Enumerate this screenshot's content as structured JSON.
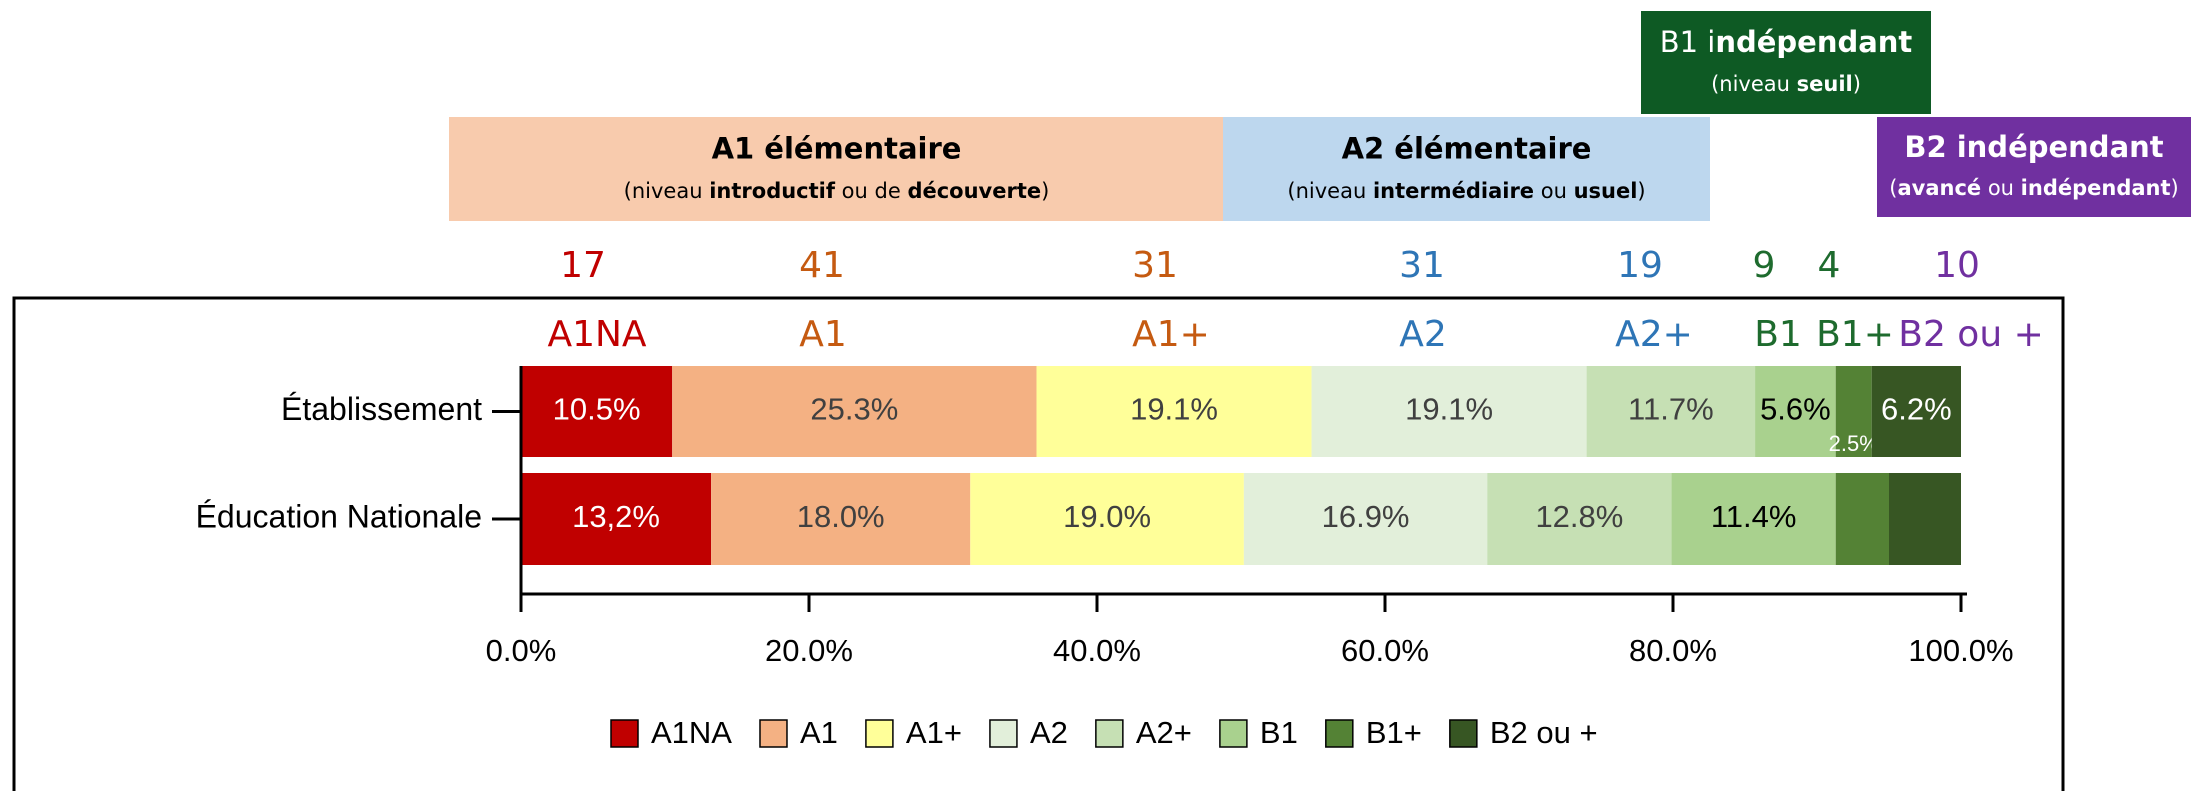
{
  "chart_data": {
    "type": "stacked_barh",
    "categories": [
      "Établissement",
      "Éducation Nationale"
    ],
    "series": [
      {
        "name": "A1NA",
        "color": "#c00000",
        "label_color": "#ffffff",
        "values": [
          10.5,
          13.2
        ],
        "value_labels": [
          "10.5%",
          "13,2%"
        ]
      },
      {
        "name": "A1",
        "color": "#f4b183",
        "label_color": "#404040",
        "values": [
          25.3,
          18.0
        ],
        "value_labels": [
          "25.3%",
          "18.0%"
        ]
      },
      {
        "name": "A1+",
        "color": "#ffff99",
        "label_color": "#404040",
        "values": [
          19.1,
          19.0
        ],
        "value_labels": [
          "19.1%",
          "19.0%"
        ]
      },
      {
        "name": "A2",
        "color": "#e2efda",
        "label_color": "#404040",
        "values": [
          19.1,
          16.9
        ],
        "value_labels": [
          "19.1%",
          "16.9%"
        ]
      },
      {
        "name": "A2+",
        "color": "#c6e0b4",
        "label_color": "#404040",
        "values": [
          11.7,
          12.8
        ],
        "value_labels": [
          "11.7%",
          "12.8%"
        ]
      },
      {
        "name": "B1",
        "color": "#a9d18e",
        "label_color": "#000000",
        "values": [
          5.6,
          11.4
        ],
        "value_labels": [
          "5.6%",
          "11.4%"
        ]
      },
      {
        "name": "B1+",
        "color": "#548235",
        "label_color": "#ffffff",
        "values": [
          2.5,
          3.7
        ],
        "value_labels": [
          "2.5%",
          null
        ]
      },
      {
        "name": "B2 ou +",
        "color": "#375623",
        "label_color": "#ffffff",
        "values": [
          6.2,
          5.0
        ],
        "value_labels": [
          "6.2%",
          null
        ]
      }
    ],
    "xlim": [
      0,
      100
    ],
    "xticks": [
      {
        "value": 0,
        "label": "0.0%"
      },
      {
        "value": 20,
        "label": "20.0%"
      },
      {
        "value": 40,
        "label": "40.0%"
      },
      {
        "value": 60,
        "label": "60.0%"
      },
      {
        "value": 80,
        "label": "80.0%"
      },
      {
        "value": 100,
        "label": "100.0%"
      }
    ],
    "legend": "bottom",
    "annotations": [
      {
        "count": 17,
        "label": "A1NA",
        "color": "#c00000"
      },
      {
        "count": 41,
        "label": "A1",
        "color": "#c55a11"
      },
      {
        "count": 31,
        "label": "A1+",
        "color": "#c55a11"
      },
      {
        "count": 31,
        "label": "A2",
        "color": "#2e75b6"
      },
      {
        "count": 19,
        "label": "A2+",
        "color": "#2e75b6"
      },
      {
        "count": 9,
        "label": "B1",
        "color": "#1e6b2e"
      },
      {
        "count": 4,
        "label": "B1+",
        "color": "#1e6b2e"
      },
      {
        "count": 10,
        "label": "B2 ou +",
        "color": "#7030a0"
      }
    ],
    "banners": [
      {
        "fill": "#f8cbad",
        "text_color": "#000000",
        "title": [
          {
            "text": "A1 élémentaire",
            "bold": true
          }
        ],
        "subtitle": [
          {
            "text": "(niveau ",
            "bold": false
          },
          {
            "text": "introductif",
            "bold": true
          },
          {
            "text": " ou de ",
            "bold": false
          },
          {
            "text": "découverte",
            "bold": true
          },
          {
            "text": ")",
            "bold": false
          }
        ]
      },
      {
        "fill": "#bdd7ee",
        "text_color": "#000000",
        "title": [
          {
            "text": "A2 élémentaire",
            "bold": true
          }
        ],
        "subtitle": [
          {
            "text": "(niveau ",
            "bold": false
          },
          {
            "text": "intermédiaire",
            "bold": true
          },
          {
            "text": " ou ",
            "bold": false
          },
          {
            "text": "usuel",
            "bold": true
          },
          {
            "text": ")",
            "bold": false
          }
        ]
      },
      {
        "fill": "#0e5a24",
        "text_color": "#ffffff",
        "title": [
          {
            "text": "B1 i",
            "bold": false
          },
          {
            "text": "ndépendant",
            "bold": true
          }
        ],
        "subtitle": [
          {
            "text": "(niveau ",
            "bold": false
          },
          {
            "text": "seuil",
            "bold": true
          },
          {
            "text": ")",
            "bold": false
          }
        ]
      },
      {
        "fill": "#7030a0",
        "text_color": "#ffffff",
        "title": [
          {
            "text": "B2 indépendant",
            "bold": true
          }
        ],
        "subtitle": [
          {
            "text": "(",
            "bold": false
          },
          {
            "text": "avancé",
            "bold": true
          },
          {
            "text": " ou ",
            "bold": false
          },
          {
            "text": "indépendant",
            "bold": true
          },
          {
            "text": ")",
            "bold": false
          }
        ]
      }
    ]
  }
}
